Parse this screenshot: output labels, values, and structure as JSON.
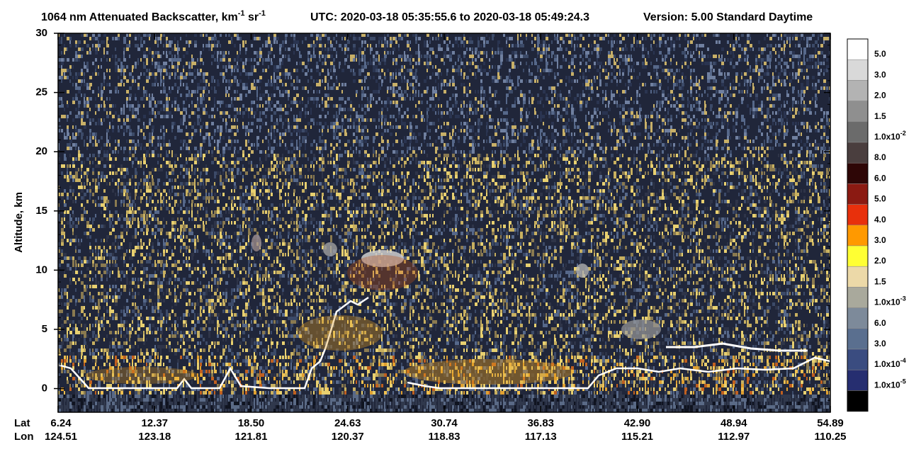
{
  "chart_data": {
    "type": "curtain",
    "title": {
      "product": "1064 nm Attenuated Backscatter, km",
      "unit_exp1": "-1",
      "unit_mid": " sr",
      "unit_exp2": "-1",
      "utc": "UTC:  2020-03-18 05:35:55.6  to  2020-03-18 05:49:24.3",
      "version": "Version: 5.00  Standard  Daytime"
    },
    "ylabel": "Altitude, km",
    "ylim": [
      -2,
      30
    ],
    "yticks": [
      0,
      5,
      10,
      15,
      20,
      25,
      30
    ],
    "x_rows": [
      {
        "name": "Lat",
        "labels": [
          "6.24",
          "12.37",
          "18.50",
          "24.63",
          "30.74",
          "36.83",
          "42.90",
          "48.94",
          "54.89"
        ]
      },
      {
        "name": "Lon",
        "labels": [
          "124.51",
          "123.18",
          "121.81",
          "120.37",
          "118.83",
          "117.13",
          "115.21",
          "112.97",
          "110.25"
        ]
      }
    ],
    "colorbar": {
      "colors": [
        "#ffffff",
        "#d9d9d9",
        "#b3b3b3",
        "#8f8f8f",
        "#6b6b6b",
        "#4a3e3e",
        "#2e0606",
        "#8b1a12",
        "#e8300c",
        "#ff9900",
        "#ffff33",
        "#ecd9a8",
        "#a9a99c",
        "#7d8a9a",
        "#5a6f8f",
        "#3a4c80",
        "#262e70",
        "#000000"
      ],
      "labels": [
        {
          "text": "5.0"
        },
        {
          "text": "3.0"
        },
        {
          "text": "2.0"
        },
        {
          "text": "1.5"
        },
        {
          "text": "1.0x10",
          "sup": "-2"
        },
        {
          "text": "8.0"
        },
        {
          "text": "6.0"
        },
        {
          "text": "5.0"
        },
        {
          "text": "4.0"
        },
        {
          "text": "3.0"
        },
        {
          "text": "2.0"
        },
        {
          "text": "1.5"
        },
        {
          "text": "1.0x10",
          "sup": "-3"
        },
        {
          "text": "6.0"
        },
        {
          "text": "3.0"
        },
        {
          "text": "1.0x10",
          "sup": "-4"
        },
        {
          "text": "1.0x10",
          "sup": "-5"
        }
      ]
    }
  }
}
